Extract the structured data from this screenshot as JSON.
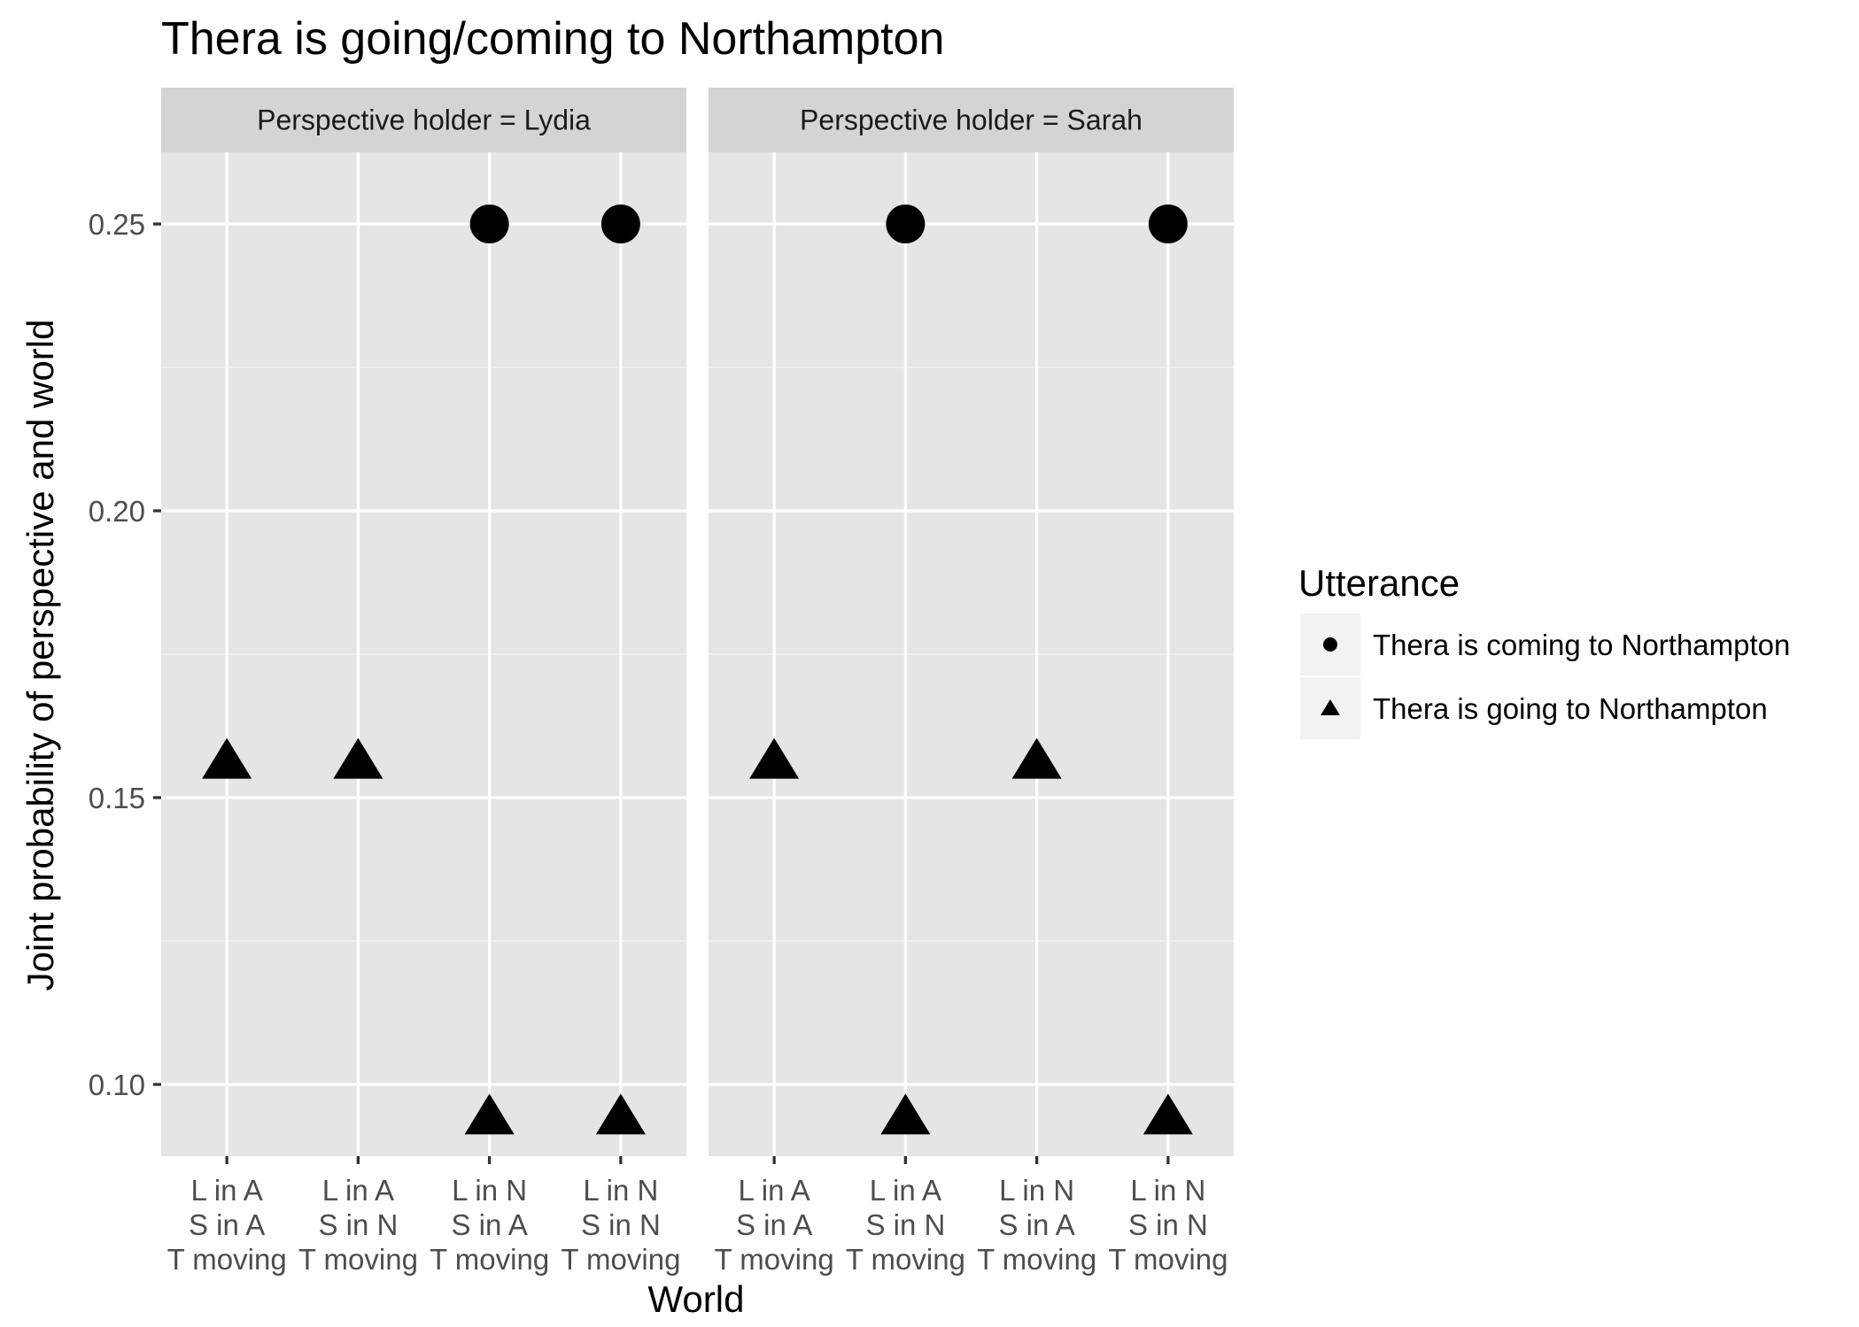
{
  "chart_data": {
    "type": "scatter",
    "title": "Thera is going/coming to Northampton",
    "xlabel": "World",
    "ylabel": "Joint probability of perspective and world",
    "ylim": [
      0.0875,
      0.2625
    ],
    "yticks": [
      "0.10",
      "0.15",
      "0.20",
      "0.25"
    ],
    "ytick_values": [
      0.1,
      0.15,
      0.2,
      0.25
    ],
    "categories": [
      [
        "L in A",
        "S in A",
        "T moving"
      ],
      [
        "L in A",
        "S in N",
        "T moving"
      ],
      [
        "L in N",
        "S in A",
        "T moving"
      ],
      [
        "L in N",
        "S in N",
        "T moving"
      ]
    ],
    "legend": {
      "title": "Utterance",
      "position": "right",
      "items": [
        {
          "label": "Thera is coming to Northampton",
          "shape": "circle"
        },
        {
          "label": "Thera is going to Northampton",
          "shape": "triangle"
        }
      ]
    },
    "facets": [
      {
        "label": "Perspective holder = Lydia",
        "series": [
          {
            "name": "Thera is coming to Northampton",
            "shape": "circle",
            "values": [
              null,
              null,
              0.25,
              0.25
            ]
          },
          {
            "name": "Thera is going to Northampton",
            "shape": "triangle",
            "values": [
              0.156,
              0.156,
              0.094,
              0.094
            ]
          }
        ]
      },
      {
        "label": "Perspective holder = Sarah",
        "series": [
          {
            "name": "Thera is coming to Northampton",
            "shape": "circle",
            "values": [
              null,
              0.25,
              null,
              0.25
            ]
          },
          {
            "name": "Thera is going to Northampton",
            "shape": "triangle",
            "values": [
              0.156,
              0.094,
              0.156,
              0.094
            ]
          }
        ]
      }
    ],
    "colors": {
      "marks": "#000000",
      "panel": "#e5e5e5",
      "strip": "#d4d4d4",
      "grid": "#ffffff"
    }
  }
}
